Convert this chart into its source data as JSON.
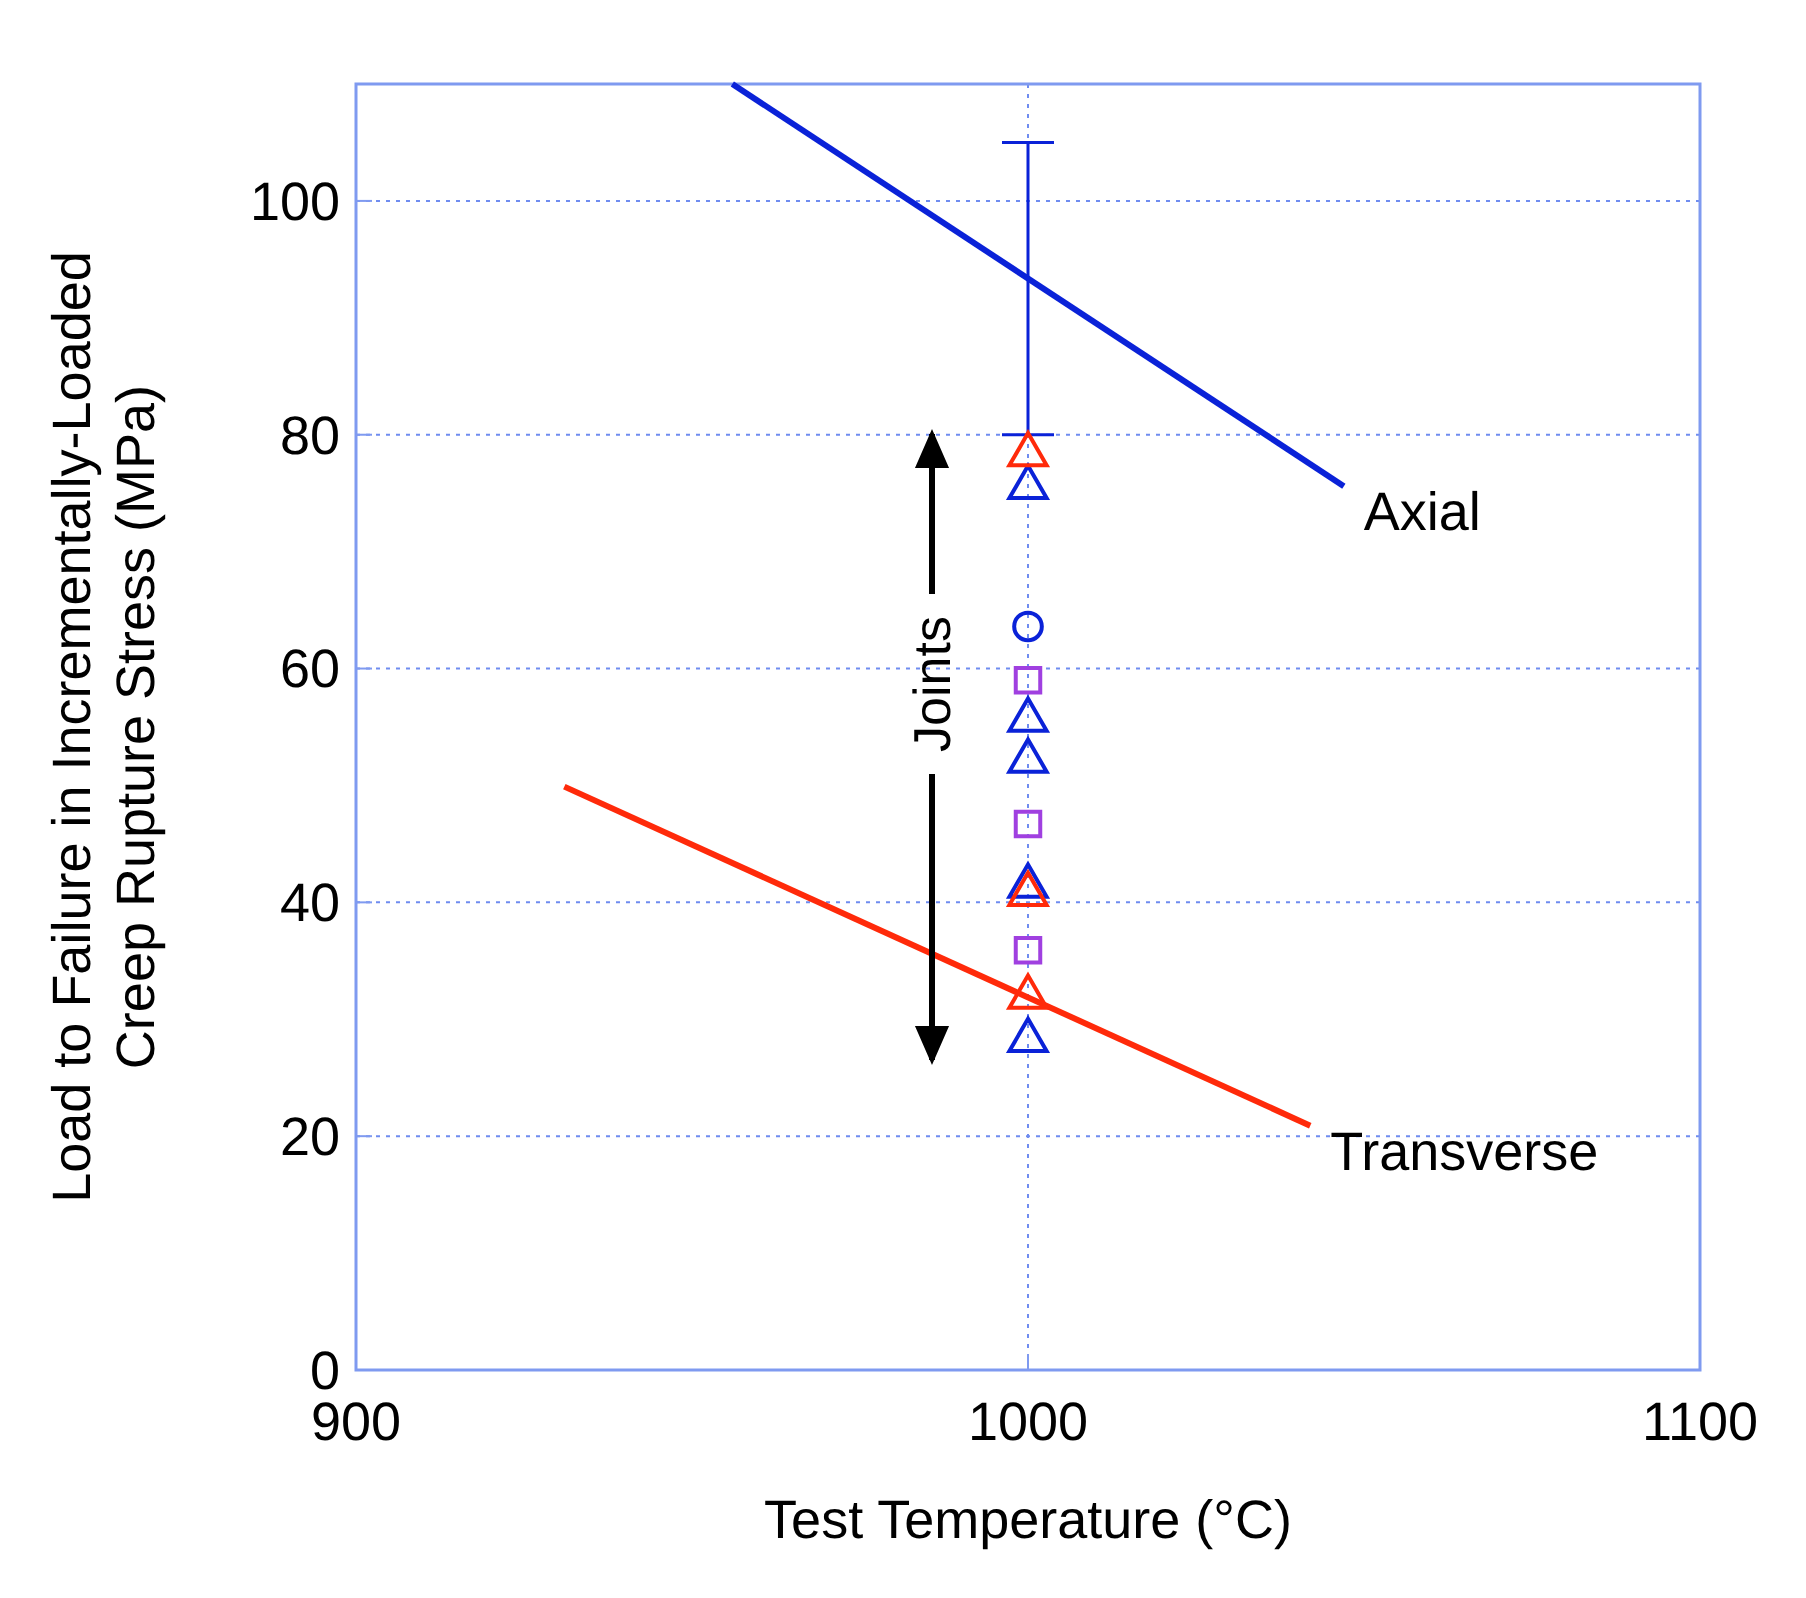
{
  "chart_data": {
    "type": "scatter",
    "xlabel": "Test Temperature (°C)",
    "ylabel": "Load to Failure in Incrementally-Loaded\nCreep Rupture Stress (MPa)",
    "xlim": [
      900,
      1100
    ],
    "ylim": [
      0,
      110
    ],
    "xticks": [
      900,
      1000,
      1100
    ],
    "yticks": [
      0,
      20,
      40,
      60,
      80,
      100
    ],
    "grid": true,
    "series": [
      {
        "name": "Axial",
        "type": "line",
        "color": "#0a22d8",
        "x": [
          956,
          1047
        ],
        "values": [
          110,
          75.6
        ]
      },
      {
        "name": "Transverse",
        "type": "line",
        "color": "#ff2a0a",
        "x": [
          931,
          1042
        ],
        "values": [
          49.9,
          20.9
        ]
      },
      {
        "type": "line",
        "color": "#0a22d8",
        "x": [
          1000,
          1000
        ],
        "values": [
          80,
          105
        ]
      },
      {
        "marker": "triangle",
        "color": "#0a22d8",
        "x": [
          1000,
          1000,
          1000,
          1000,
          1000
        ],
        "values": [
          75.5,
          55.6,
          52.1,
          41.4,
          28.2
        ]
      },
      {
        "marker": "circle",
        "color": "#0a22d8",
        "x": [
          1000
        ],
        "values": [
          63.6
        ]
      },
      {
        "marker": "square",
        "color": "#a040e0",
        "x": [
          1000,
          1000,
          1000
        ],
        "values": [
          59,
          46.7,
          35.9
        ]
      },
      {
        "marker": "triangle",
        "color": "#ff2a0a",
        "x": [
          1000,
          1000,
          1000
        ],
        "values": [
          78.3,
          40.7,
          31.9
        ]
      }
    ],
    "annotations": [
      "Joints"
    ]
  }
}
